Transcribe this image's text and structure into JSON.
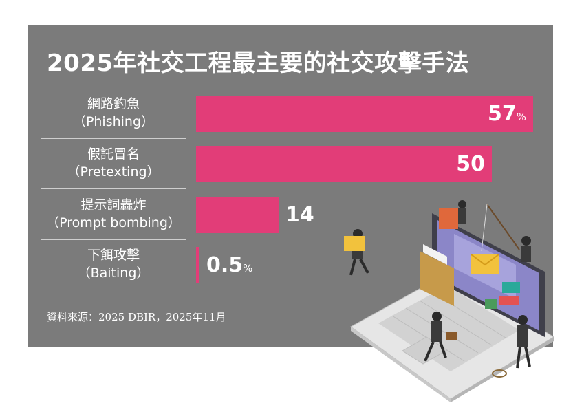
{
  "chart_data": {
    "type": "bar",
    "orientation": "horizontal",
    "title": "2025年社交工程最主要的社交攻擊手法",
    "categories": [
      {
        "zh": "網路釣魚",
        "en": "（Phishing）"
      },
      {
        "zh": "假託冒名",
        "en": "（Pretexting）"
      },
      {
        "zh": "提示詞轟炸",
        "en": "（Prompt bombing）"
      },
      {
        "zh": "下餌攻擊",
        "en": "（Baiting）"
      }
    ],
    "values": [
      57,
      50,
      14,
      0.5
    ],
    "value_labels": [
      "57",
      "50",
      "14",
      "0.5"
    ],
    "unit": "%",
    "unit_shown": [
      true,
      false,
      false,
      true
    ],
    "xlim": [
      0,
      57
    ],
    "bar_color": "#e23d78",
    "grid": false,
    "legend": "none"
  },
  "source": "資料來源：2025 DBIR，2025年11月",
  "colors": {
    "background": "#7b7b7b",
    "bar": "#e23d78",
    "text": "#ffffff",
    "value_text_outside": "#ffffff"
  },
  "illustration": "laptop-hackers-phishing-illustration"
}
